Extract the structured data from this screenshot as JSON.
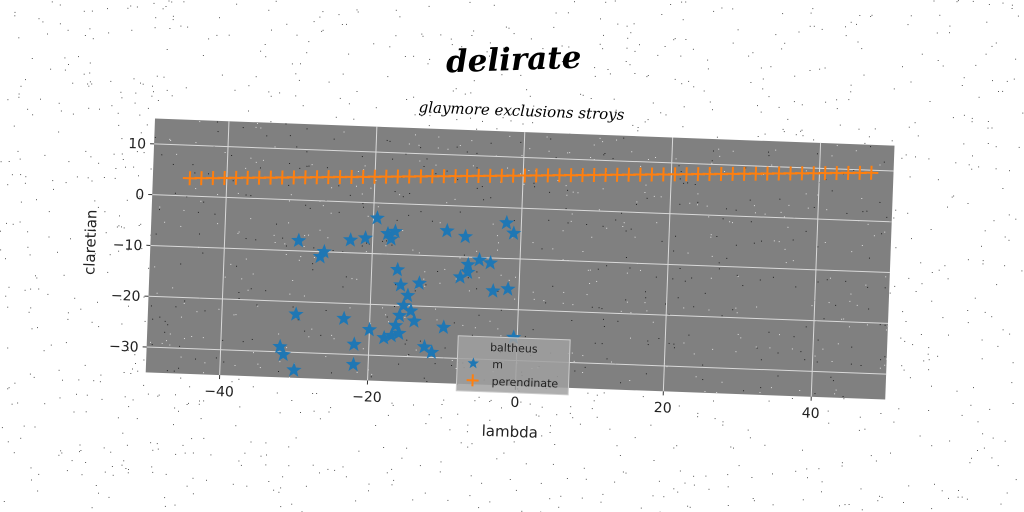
{
  "chart_data": {
    "type": "scatter",
    "suptitle": "delirate",
    "title": "glaymore exclusions stroys",
    "xlabel": "lambda",
    "ylabel": "claretian",
    "xlim": [
      -50,
      50
    ],
    "ylim": [
      -35,
      15
    ],
    "xticks": [
      -40,
      -20,
      0,
      20,
      40
    ],
    "yticks": [
      -30,
      -20,
      -10,
      0,
      10
    ],
    "xtick_labels": [
      "−40",
      "−20",
      "0",
      "20",
      "40"
    ],
    "ytick_labels": [
      "−30",
      "−20",
      "−10",
      "0",
      "10"
    ],
    "grid": true,
    "plot_background": "#808080",
    "legend": {
      "placement": "lower-center",
      "title": "baltheus"
    },
    "series": [
      {
        "name": "m",
        "marker": "star",
        "color": "#1f77b4",
        "points": [
          [
            -30,
            -8
          ],
          [
            -27,
            -11
          ],
          [
            -26.5,
            -10
          ],
          [
            -23,
            -7.5
          ],
          [
            -21,
            -7
          ],
          [
            -19.5,
            -3
          ],
          [
            -18,
            -6
          ],
          [
            -17.5,
            -7
          ],
          [
            -17,
            -5.5
          ],
          [
            -30,
            -22.5
          ],
          [
            -23.5,
            -23
          ],
          [
            -22,
            -28
          ],
          [
            -22,
            -32
          ],
          [
            -20,
            -25
          ],
          [
            -32,
            -29
          ],
          [
            -31.5,
            -30.5
          ],
          [
            -30,
            -33.5
          ],
          [
            -16.5,
            -13
          ],
          [
            -16,
            -16
          ],
          [
            -15,
            -18
          ],
          [
            -15.5,
            -20
          ],
          [
            -14.5,
            -21
          ],
          [
            -16,
            -22
          ],
          [
            -16.5,
            -24
          ],
          [
            -17,
            -26
          ],
          [
            -18,
            -26.5
          ],
          [
            -16,
            -25.5
          ],
          [
            -14,
            -23
          ],
          [
            -12.5,
            -28
          ],
          [
            -11.5,
            -29
          ],
          [
            -10,
            -24
          ],
          [
            -10,
            -5
          ],
          [
            -7.5,
            -6
          ],
          [
            -7,
            -11.5
          ],
          [
            -7,
            -13
          ],
          [
            -5.5,
            -10.5
          ],
          [
            -4,
            -11
          ],
          [
            -3.5,
            -16.5
          ],
          [
            -2,
            -3
          ],
          [
            -1.5,
            -16
          ],
          [
            -1,
            -5
          ],
          [
            -0.5,
            -25.5
          ],
          [
            -13.5,
            -15.5
          ],
          [
            -8,
            -14
          ]
        ]
      },
      {
        "name": "perendinate",
        "marker": "plus",
        "color": "#ff7f0e",
        "x_start": -45,
        "x_end": 47,
        "y_start": 3.5,
        "y_end": 9.5,
        "count": 60
      }
    ]
  }
}
